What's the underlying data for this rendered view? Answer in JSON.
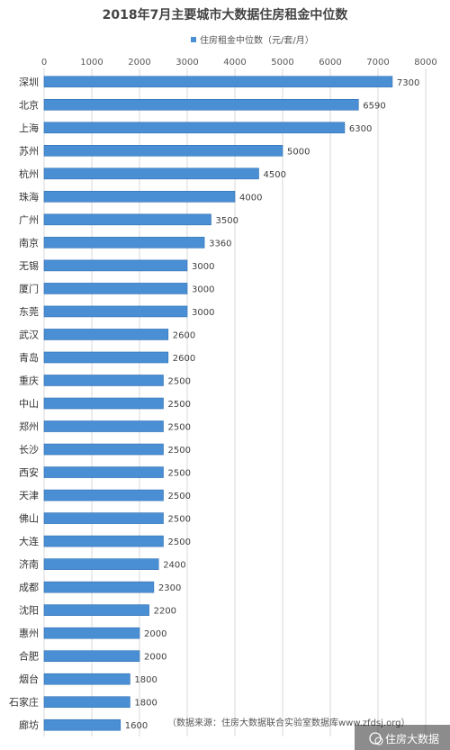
{
  "chart_data": {
    "type": "bar",
    "orientation": "horizontal",
    "title": "2018年7月主要城市大数据住房租金中位数",
    "legend": {
      "label": "住房租金中位数（元/套/月）",
      "color": "#4a8fd4",
      "placement": "top"
    },
    "xlim": [
      0,
      8000
    ],
    "xticks": [
      0,
      1000,
      2000,
      3000,
      4000,
      5000,
      6000,
      7000,
      8000
    ],
    "grid": true,
    "categories": [
      "深圳",
      "北京",
      "上海",
      "苏州",
      "杭州",
      "珠海",
      "广州",
      "南京",
      "无锡",
      "厦门",
      "东莞",
      "武汉",
      "青岛",
      "重庆",
      "中山",
      "郑州",
      "长沙",
      "西安",
      "天津",
      "佛山",
      "大连",
      "济南",
      "成都",
      "沈阳",
      "惠州",
      "合肥",
      "烟台",
      "石家庄",
      "廊坊"
    ],
    "values": [
      7300,
      6590,
      6300,
      5000,
      4500,
      4000,
      3500,
      3360,
      3000,
      3000,
      3000,
      2600,
      2600,
      2500,
      2500,
      2500,
      2500,
      2500,
      2500,
      2500,
      2500,
      2400,
      2300,
      2200,
      2000,
      2000,
      1800,
      1800,
      1600
    ],
    "source_note": "（数据来源：住房大数据联合实验室数据库www.zfdsj.org）"
  },
  "watermark": "住房大数据",
  "colors": {
    "bar": "#4a8fd4",
    "bar_edge": "#2f6fb3",
    "grid": "#d9d9d9"
  }
}
